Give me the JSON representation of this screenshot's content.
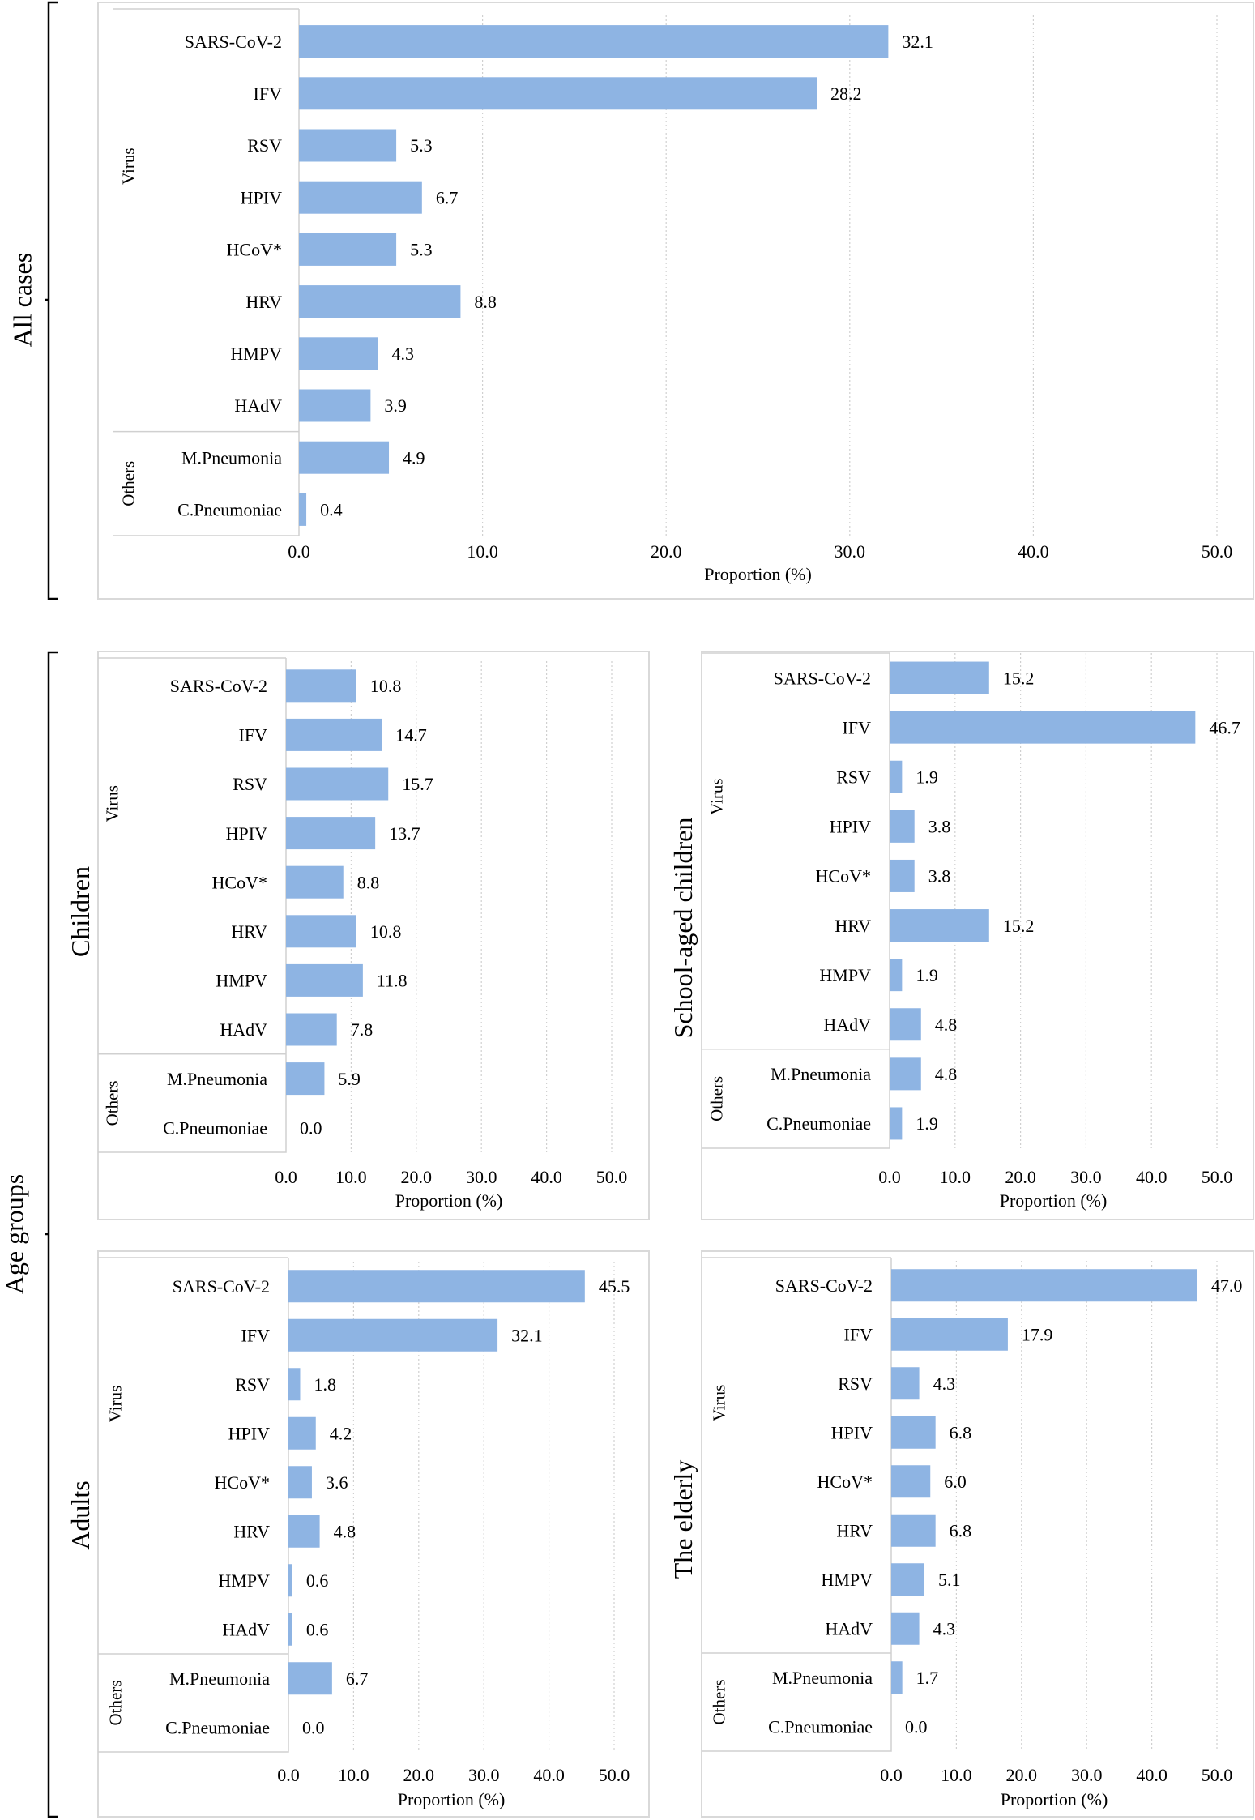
{
  "groups": {
    "all_cases": "All cases",
    "age_groups": "Age groups"
  },
  "chart_data": [
    {
      "id": "all",
      "type": "bar",
      "orientation": "horizontal",
      "title": "All cases",
      "xlabel": "Proportion (%)",
      "xlim": [
        0,
        50
      ],
      "xticks": [
        "0.0",
        "10.0",
        "20.0",
        "30.0",
        "40.0",
        "50.0"
      ],
      "category_groups": [
        {
          "label": "Virus",
          "categories": [
            "SARS-CoV-2",
            "IFV",
            "RSV",
            "HPIV",
            "HCoV*",
            "HRV",
            "HMPV",
            "HAdV"
          ]
        },
        {
          "label": "Others",
          "categories": [
            "M.Pneumonia",
            "C.Pneumoniae"
          ]
        }
      ],
      "categories": [
        "SARS-CoV-2",
        "IFV",
        "RSV",
        "HPIV",
        "HCoV*",
        "HRV",
        "HMPV",
        "HAdV",
        "M.Pneumonia",
        "C.Pneumoniae"
      ],
      "values": [
        32.1,
        28.2,
        5.3,
        6.7,
        5.3,
        8.8,
        4.3,
        3.9,
        4.9,
        0.4
      ],
      "value_labels": [
        "32.1",
        "28.2",
        "5.3",
        "6.7",
        "5.3",
        "8.8",
        "4.3",
        "3.9",
        "4.9",
        "0.4"
      ],
      "grid": true,
      "bar_color": "#8eb4e3"
    },
    {
      "id": "children",
      "type": "bar",
      "orientation": "horizontal",
      "title": "Children",
      "xlabel": "Proportion (%)",
      "xlim": [
        0,
        50
      ],
      "xticks": [
        "0.0",
        "10.0",
        "20.0",
        "30.0",
        "40.0",
        "50.0"
      ],
      "category_groups": [
        {
          "label": "Virus",
          "categories": [
            "SARS-CoV-2",
            "IFV",
            "RSV",
            "HPIV",
            "HCoV*",
            "HRV",
            "HMPV",
            "HAdV"
          ]
        },
        {
          "label": "Others",
          "categories": [
            "M.Pneumonia",
            "C.Pneumoniae"
          ]
        }
      ],
      "categories": [
        "SARS-CoV-2",
        "IFV",
        "RSV",
        "HPIV",
        "HCoV*",
        "HRV",
        "HMPV",
        "HAdV",
        "M.Pneumonia",
        "C.Pneumoniae"
      ],
      "values": [
        10.8,
        14.7,
        15.7,
        13.7,
        8.8,
        10.8,
        11.8,
        7.8,
        5.9,
        0.0
      ],
      "value_labels": [
        "10.8",
        "14.7",
        "15.7",
        "13.7",
        "8.8",
        "10.8",
        "11.8",
        "7.8",
        "5.9",
        "0.0"
      ],
      "grid": true,
      "bar_color": "#8eb4e3"
    },
    {
      "id": "school",
      "type": "bar",
      "orientation": "horizontal",
      "title": "School-aged children",
      "xlabel": "Proportion (%)",
      "xlim": [
        0,
        50
      ],
      "xticks": [
        "0.0",
        "10.0",
        "20.0",
        "30.0",
        "40.0",
        "50.0"
      ],
      "category_groups": [
        {
          "label": "Virus",
          "categories": [
            "SARS-CoV-2",
            "IFV",
            "RSV",
            "HPIV",
            "HCoV*",
            "HRV",
            "HMPV",
            "HAdV"
          ]
        },
        {
          "label": "Others",
          "categories": [
            "M.Pneumonia",
            "C.Pneumoniae"
          ]
        }
      ],
      "categories": [
        "SARS-CoV-2",
        "IFV",
        "RSV",
        "HPIV",
        "HCoV*",
        "HRV",
        "HMPV",
        "HAdV",
        "M.Pneumonia",
        "C.Pneumoniae"
      ],
      "values": [
        15.2,
        46.7,
        1.9,
        3.8,
        3.8,
        15.2,
        1.9,
        4.8,
        4.8,
        1.9
      ],
      "value_labels": [
        "15.2",
        "46.7",
        "1.9",
        "3.8",
        "3.8",
        "15.2",
        "1.9",
        "4.8",
        "4.8",
        "1.9"
      ],
      "grid": true,
      "bar_color": "#8eb4e3"
    },
    {
      "id": "adults",
      "type": "bar",
      "orientation": "horizontal",
      "title": "Adults",
      "xlabel": "Proportion (%)",
      "xlim": [
        0,
        50
      ],
      "xticks": [
        "0.0",
        "10.0",
        "20.0",
        "30.0",
        "40.0",
        "50.0"
      ],
      "category_groups": [
        {
          "label": "Virus",
          "categories": [
            "SARS-CoV-2",
            "IFV",
            "RSV",
            "HPIV",
            "HCoV*",
            "HRV",
            "HMPV",
            "HAdV"
          ]
        },
        {
          "label": "Others",
          "categories": [
            "M.Pneumonia",
            "C.Pneumoniae"
          ]
        }
      ],
      "categories": [
        "SARS-CoV-2",
        "IFV",
        "RSV",
        "HPIV",
        "HCoV*",
        "HRV",
        "HMPV",
        "HAdV",
        "M.Pneumonia",
        "C.Pneumoniae"
      ],
      "values": [
        45.5,
        32.1,
        1.8,
        4.2,
        3.6,
        4.8,
        0.6,
        0.6,
        6.7,
        0.0
      ],
      "value_labels": [
        "45.5",
        "32.1",
        "1.8",
        "4.2",
        "3.6",
        "4.8",
        "0.6",
        "0.6",
        "6.7",
        "0.0"
      ],
      "grid": true,
      "bar_color": "#8eb4e3"
    },
    {
      "id": "elderly",
      "type": "bar",
      "orientation": "horizontal",
      "title": "The elderly",
      "xlabel": "Proportion (%)",
      "xlim": [
        0,
        50
      ],
      "xticks": [
        "0.0",
        "10.0",
        "20.0",
        "30.0",
        "40.0",
        "50.0"
      ],
      "category_groups": [
        {
          "label": "Virus",
          "categories": [
            "SARS-CoV-2",
            "IFV",
            "RSV",
            "HPIV",
            "HCoV*",
            "HRV",
            "HMPV",
            "HAdV"
          ]
        },
        {
          "label": "Others",
          "categories": [
            "M.Pneumonia",
            "C.Pneumoniae"
          ]
        }
      ],
      "categories": [
        "SARS-CoV-2",
        "IFV",
        "RSV",
        "HPIV",
        "HCoV*",
        "HRV",
        "HMPV",
        "HAdV",
        "M.Pneumonia",
        "C.Pneumoniae"
      ],
      "values": [
        47.0,
        17.9,
        4.3,
        6.8,
        6.0,
        6.8,
        5.1,
        4.3,
        1.7,
        0.0
      ],
      "value_labels": [
        "47.0",
        "17.9",
        "4.3",
        "6.8",
        "6.0",
        "6.8",
        "5.1",
        "4.3",
        "1.7",
        "0.0"
      ],
      "grid": true,
      "bar_color": "#8eb4e3"
    }
  ]
}
